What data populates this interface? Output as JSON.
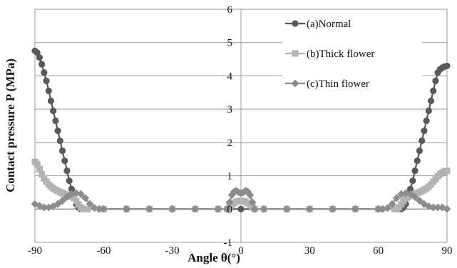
{
  "chart_data": {
    "type": "line",
    "xlabel": "Angle θ(°)",
    "ylabel": "Contact pressure P (MPa)",
    "xlim": [
      -90,
      90
    ],
    "ylim": [
      -1,
      6
    ],
    "x_ticks": [
      "-90",
      "-60",
      "-30",
      "0",
      "30",
      "60",
      "90"
    ],
    "y_ticks": [
      "-1",
      "0",
      "1",
      "2",
      "3",
      "4",
      "5",
      "6"
    ],
    "grid": true,
    "legend_position": "top-right",
    "series": [
      {
        "name": "(a)Normal",
        "color": "#595959",
        "marker": "circle",
        "x": [
          -90,
          -89,
          -88,
          -87,
          -86,
          -85,
          -84,
          -83,
          -82,
          -81,
          -80,
          -79,
          -78,
          -77,
          -76,
          -75,
          -74,
          -73,
          -72,
          -71,
          -70,
          -69,
          -68,
          -60,
          -50,
          -40,
          -30,
          -20,
          -10,
          0,
          10,
          20,
          30,
          40,
          50,
          60,
          68,
          69,
          70,
          71,
          72,
          73,
          74,
          75,
          76,
          77,
          78,
          79,
          80,
          81,
          82,
          83,
          84,
          85,
          86,
          87,
          88,
          89,
          90
        ],
        "y": [
          4.75,
          4.7,
          4.55,
          4.35,
          4.1,
          3.85,
          3.55,
          3.25,
          2.95,
          2.65,
          2.35,
          2.05,
          1.75,
          1.45,
          1.15,
          0.85,
          0.6,
          0.35,
          0.15,
          0.05,
          0,
          0,
          0,
          0,
          0,
          0,
          0,
          0,
          0,
          0,
          0,
          0,
          0,
          0,
          0,
          0,
          0,
          0,
          0,
          0.05,
          0.15,
          0.35,
          0.6,
          0.85,
          1.15,
          1.45,
          1.75,
          2.05,
          2.35,
          2.65,
          2.95,
          3.25,
          3.55,
          3.85,
          4.1,
          4.2,
          4.25,
          4.28,
          4.3
        ]
      },
      {
        "name": "(b)Thick flower",
        "color": "#b3b3b3",
        "marker": "square",
        "x": [
          -90,
          -89,
          -88,
          -87,
          -86,
          -85,
          -84,
          -83,
          -82,
          -81,
          -80,
          -79,
          -78,
          -77,
          -76,
          -75,
          -74,
          -73,
          -72,
          -71,
          -70,
          -69,
          -68,
          -67,
          -60,
          -50,
          -40,
          -30,
          -20,
          -10,
          -6,
          -5,
          -4,
          -3,
          -2,
          -1,
          0,
          1,
          2,
          3,
          4,
          5,
          6,
          10,
          20,
          30,
          40,
          50,
          60,
          67,
          68,
          69,
          70,
          71,
          72,
          73,
          74,
          75,
          76,
          77,
          78,
          79,
          80,
          81,
          82,
          83,
          84,
          85,
          86,
          87,
          88,
          89,
          90
        ],
        "y": [
          1.42,
          1.35,
          1.2,
          1.05,
          0.92,
          0.82,
          0.74,
          0.67,
          0.62,
          0.58,
          0.54,
          0.51,
          0.48,
          0.45,
          0.42,
          0.4,
          0.38,
          0.33,
          0.24,
          0.14,
          0.05,
          0,
          0,
          0,
          0,
          0,
          0,
          0,
          0,
          0,
          0,
          0.05,
          0.12,
          0.18,
          0.22,
          0.24,
          0.25,
          0.24,
          0.22,
          0.18,
          0.12,
          0.05,
          0,
          0,
          0,
          0,
          0,
          0,
          0,
          0,
          0,
          0.05,
          0.14,
          0.24,
          0.33,
          0.38,
          0.4,
          0.42,
          0.45,
          0.48,
          0.51,
          0.54,
          0.58,
          0.62,
          0.67,
          0.74,
          0.82,
          0.9,
          0.98,
          1.05,
          1.1,
          1.13,
          1.15
        ]
      },
      {
        "name": "(c)Thin flower",
        "color": "#8c8c8c",
        "marker": "diamond",
        "x": [
          -90,
          -88,
          -86,
          -84,
          -82,
          -80,
          -78,
          -76,
          -74,
          -72,
          -70,
          -68,
          -66,
          -64,
          -62,
          -60,
          -50,
          -40,
          -30,
          -20,
          -10,
          -6,
          -5,
          -4,
          -3,
          -2,
          -1,
          0,
          1,
          2,
          3,
          4,
          5,
          6,
          10,
          20,
          30,
          40,
          50,
          60,
          62,
          64,
          66,
          68,
          70,
          72,
          74,
          76,
          78,
          80,
          82,
          84,
          86,
          88,
          90
        ],
        "y": [
          0.15,
          0.1,
          0.05,
          0.05,
          0.08,
          0.15,
          0.25,
          0.36,
          0.45,
          0.48,
          0.45,
          0.33,
          0.15,
          0.03,
          0,
          0,
          0,
          0,
          0,
          0,
          0,
          0,
          0.2,
          0.42,
          0.52,
          0.55,
          0.5,
          0.48,
          0.5,
          0.55,
          0.52,
          0.42,
          0.2,
          0,
          0,
          0,
          0,
          0,
          0,
          0,
          0,
          0.03,
          0.15,
          0.33,
          0.45,
          0.48,
          0.45,
          0.36,
          0.25,
          0.15,
          0.08,
          0.05,
          0.05,
          0.05,
          0
        ]
      }
    ]
  }
}
